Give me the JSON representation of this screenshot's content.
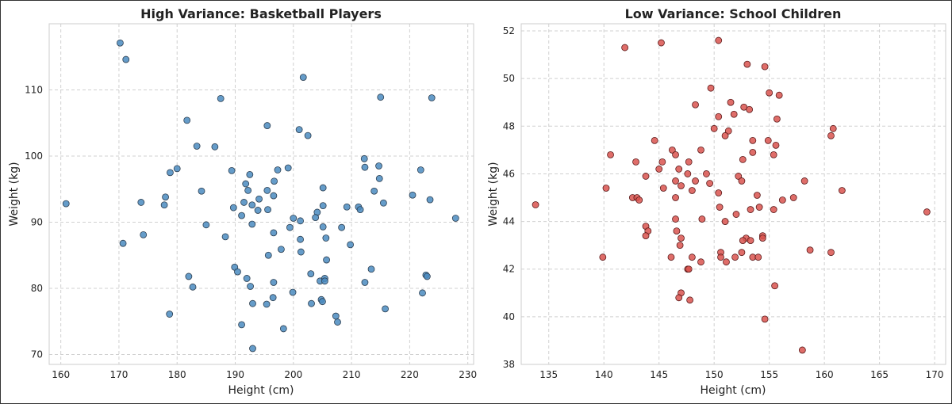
{
  "chart_data": [
    {
      "type": "scatter",
      "title": "High Variance: Basketball Players",
      "xlabel": "Height (cm)",
      "ylabel": "Weight (kg)",
      "xlim": [
        158,
        231
      ],
      "ylim": [
        68.5,
        120
      ],
      "xticks": [
        160,
        170,
        180,
        190,
        200,
        210,
        220,
        230
      ],
      "yticks": [
        70,
        80,
        90,
        100,
        110
      ],
      "grid": true,
      "color": "#4a8bbf",
      "edgecolor": "#2c3e50",
      "points": [
        [
          170.2,
          117.1
        ],
        [
          171.2,
          114.6
        ],
        [
          201.7,
          111.9
        ],
        [
          187.5,
          108.7
        ],
        [
          215.0,
          108.9
        ],
        [
          223.8,
          108.8
        ],
        [
          181.7,
          105.4
        ],
        [
          195.5,
          104.6
        ],
        [
          201.0,
          104.0
        ],
        [
          202.5,
          103.1
        ],
        [
          183.4,
          101.5
        ],
        [
          186.5,
          101.4
        ],
        [
          212.2,
          99.6
        ],
        [
          212.3,
          98.3
        ],
        [
          214.7,
          98.5
        ],
        [
          221.9,
          97.9
        ],
        [
          180.0,
          98.1
        ],
        [
          178.8,
          97.5
        ],
        [
          189.4,
          97.8
        ],
        [
          192.5,
          97.2
        ],
        [
          197.3,
          97.9
        ],
        [
          199.1,
          98.2
        ],
        [
          196.7,
          96.2
        ],
        [
          214.8,
          96.6
        ],
        [
          191.8,
          95.8
        ],
        [
          192.2,
          94.8
        ],
        [
          184.2,
          94.7
        ],
        [
          195.5,
          94.8
        ],
        [
          196.6,
          94.0
        ],
        [
          205.1,
          95.2
        ],
        [
          213.9,
          94.7
        ],
        [
          220.5,
          94.1
        ],
        [
          223.5,
          93.4
        ],
        [
          173.8,
          93.0
        ],
        [
          178.0,
          93.8
        ],
        [
          177.8,
          92.6
        ],
        [
          160.9,
          92.8
        ],
        [
          189.7,
          92.2
        ],
        [
          191.5,
          93.0
        ],
        [
          192.9,
          92.6
        ],
        [
          194.1,
          93.5
        ],
        [
          193.9,
          91.8
        ],
        [
          195.6,
          91.9
        ],
        [
          191.1,
          91.0
        ],
        [
          204.1,
          91.5
        ],
        [
          205.1,
          92.5
        ],
        [
          209.2,
          92.3
        ],
        [
          211.2,
          92.3
        ],
        [
          211.5,
          91.9
        ],
        [
          215.5,
          92.9
        ],
        [
          227.9,
          90.6
        ],
        [
          200.0,
          90.6
        ],
        [
          203.8,
          90.7
        ],
        [
          201.2,
          90.2
        ],
        [
          185.0,
          89.6
        ],
        [
          192.9,
          89.7
        ],
        [
          199.4,
          89.2
        ],
        [
          205.1,
          89.3
        ],
        [
          208.3,
          89.2
        ],
        [
          174.2,
          88.1
        ],
        [
          196.6,
          88.4
        ],
        [
          188.3,
          87.8
        ],
        [
          201.2,
          87.4
        ],
        [
          205.6,
          87.6
        ],
        [
          170.7,
          86.8
        ],
        [
          209.8,
          86.6
        ],
        [
          197.9,
          85.9
        ],
        [
          201.3,
          85.5
        ],
        [
          195.7,
          85.0
        ],
        [
          205.7,
          84.3
        ],
        [
          189.9,
          83.2
        ],
        [
          190.4,
          82.5
        ],
        [
          213.4,
          82.9
        ],
        [
          203.0,
          82.2
        ],
        [
          222.8,
          82.0
        ],
        [
          223.0,
          81.8
        ],
        [
          182.0,
          81.8
        ],
        [
          192.0,
          81.5
        ],
        [
          204.6,
          81.1
        ],
        [
          205.4,
          81.5
        ],
        [
          205.4,
          81.1
        ],
        [
          196.6,
          80.9
        ],
        [
          212.3,
          80.9
        ],
        [
          182.7,
          80.2
        ],
        [
          192.6,
          80.3
        ],
        [
          199.9,
          79.4
        ],
        [
          222.2,
          79.3
        ],
        [
          196.5,
          78.6
        ],
        [
          204.8,
          78.3
        ],
        [
          205.0,
          78.0
        ],
        [
          193.0,
          77.7
        ],
        [
          195.4,
          77.6
        ],
        [
          203.1,
          77.7
        ],
        [
          215.8,
          76.9
        ],
        [
          178.7,
          76.1
        ],
        [
          207.3,
          75.8
        ],
        [
          207.6,
          74.9
        ],
        [
          191.1,
          74.5
        ],
        [
          198.3,
          73.9
        ],
        [
          193.0,
          70.9
        ]
      ]
    },
    {
      "type": "scatter",
      "title": "Low Variance: School Children",
      "xlabel": "Height (cm)",
      "ylabel": "Weight (kg)",
      "xlim": [
        132.5,
        171
      ],
      "ylim": [
        38,
        52.3
      ],
      "xticks": [
        135,
        140,
        145,
        150,
        155,
        160,
        165,
        170
      ],
      "yticks": [
        38,
        40,
        42,
        44,
        46,
        48,
        50,
        52
      ],
      "grid": true,
      "color": "#d9534f",
      "edgecolor": "#5a1a1a",
      "points": [
        [
          150.4,
          51.6
        ],
        [
          145.2,
          51.5
        ],
        [
          141.9,
          51.3
        ],
        [
          153.0,
          50.6
        ],
        [
          154.6,
          50.5
        ],
        [
          149.7,
          49.6
        ],
        [
          155.0,
          49.4
        ],
        [
          155.9,
          49.3
        ],
        [
          151.5,
          49.0
        ],
        [
          152.7,
          48.8
        ],
        [
          153.2,
          48.7
        ],
        [
          148.3,
          48.9
        ],
        [
          151.8,
          48.5
        ],
        [
          150.4,
          48.4
        ],
        [
          155.7,
          48.3
        ],
        [
          150.0,
          47.9
        ],
        [
          151.3,
          47.8
        ],
        [
          160.8,
          47.9
        ],
        [
          160.6,
          47.6
        ],
        [
          151.0,
          47.6
        ],
        [
          144.6,
          47.4
        ],
        [
          153.5,
          47.4
        ],
        [
          154.9,
          47.4
        ],
        [
          155.6,
          47.2
        ],
        [
          146.2,
          47.0
        ],
        [
          148.8,
          47.0
        ],
        [
          146.5,
          46.8
        ],
        [
          153.5,
          46.9
        ],
        [
          155.4,
          46.8
        ],
        [
          140.6,
          46.8
        ],
        [
          152.6,
          46.6
        ],
        [
          145.3,
          46.5
        ],
        [
          142.9,
          46.5
        ],
        [
          147.7,
          46.5
        ],
        [
          145.0,
          46.2
        ],
        [
          146.8,
          46.2
        ],
        [
          147.6,
          46.0
        ],
        [
          149.3,
          46.0
        ],
        [
          152.2,
          45.9
        ],
        [
          143.8,
          45.9
        ],
        [
          146.5,
          45.7
        ],
        [
          148.3,
          45.7
        ],
        [
          149.6,
          45.6
        ],
        [
          152.5,
          45.7
        ],
        [
          158.2,
          45.7
        ],
        [
          140.2,
          45.4
        ],
        [
          145.4,
          45.4
        ],
        [
          147.0,
          45.5
        ],
        [
          148.0,
          45.3
        ],
        [
          150.4,
          45.2
        ],
        [
          161.6,
          45.3
        ],
        [
          142.6,
          45.0
        ],
        [
          143.0,
          45.0
        ],
        [
          146.5,
          45.0
        ],
        [
          153.9,
          45.1
        ],
        [
          157.2,
          45.0
        ],
        [
          156.2,
          44.9
        ],
        [
          143.2,
          44.9
        ],
        [
          150.5,
          44.6
        ],
        [
          152.0,
          44.3
        ],
        [
          153.3,
          44.5
        ],
        [
          154.1,
          44.6
        ],
        [
          155.4,
          44.5
        ],
        [
          133.8,
          44.7
        ],
        [
          169.3,
          44.4
        ],
        [
          146.5,
          44.1
        ],
        [
          148.9,
          44.1
        ],
        [
          151.0,
          44.0
        ],
        [
          143.8,
          43.8
        ],
        [
          144.0,
          43.6
        ],
        [
          143.8,
          43.4
        ],
        [
          146.6,
          43.6
        ],
        [
          147.0,
          43.3
        ],
        [
          152.9,
          43.3
        ],
        [
          153.3,
          43.2
        ],
        [
          154.4,
          43.4
        ],
        [
          154.4,
          43.3
        ],
        [
          152.6,
          43.2
        ],
        [
          146.9,
          43.0
        ],
        [
          158.7,
          42.8
        ],
        [
          160.6,
          42.7
        ],
        [
          150.6,
          42.7
        ],
        [
          152.5,
          42.7
        ],
        [
          139.9,
          42.5
        ],
        [
          146.1,
          42.5
        ],
        [
          148.0,
          42.5
        ],
        [
          150.6,
          42.5
        ],
        [
          151.9,
          42.5
        ],
        [
          153.5,
          42.5
        ],
        [
          154.0,
          42.5
        ],
        [
          148.8,
          42.3
        ],
        [
          151.1,
          42.3
        ],
        [
          147.6,
          42.0
        ],
        [
          147.7,
          42.0
        ],
        [
          155.5,
          41.3
        ],
        [
          147.0,
          41.0
        ],
        [
          146.8,
          40.8
        ],
        [
          147.8,
          40.7
        ],
        [
          154.6,
          39.9
        ],
        [
          158.0,
          38.6
        ]
      ]
    }
  ]
}
